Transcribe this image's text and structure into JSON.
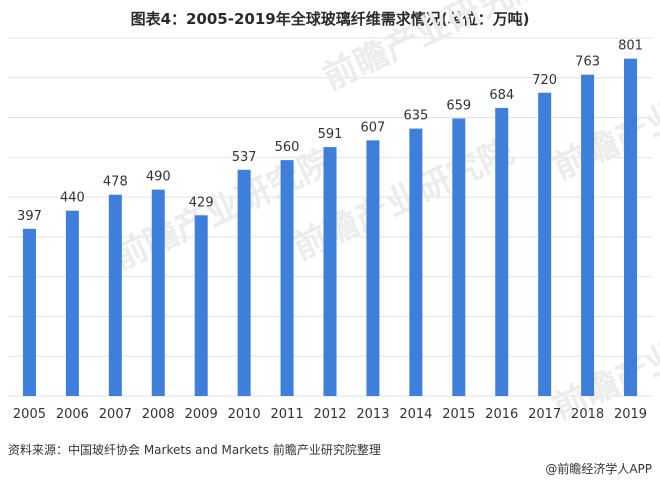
{
  "title": "图表4：2005-2019年全球玻璃纤维需求情况(单位：万吨)",
  "source": "资料来源：中国玻纤协会 Markets and Markets 前瞻产业研究院整理",
  "credit": "@前瞻经济学人APP",
  "watermark": "前瞻产业研究院",
  "colors": {
    "bar": "#3d7fdb",
    "grid": "#e3e3e3",
    "label": "#333333"
  },
  "chart_data": {
    "type": "bar",
    "title": "图表4：2005-2019年全球玻璃纤维需求情况(单位：万吨)",
    "categories": [
      "2005",
      "2006",
      "2007",
      "2008",
      "2009",
      "2010",
      "2011",
      "2012",
      "2013",
      "2014",
      "2015",
      "2016",
      "2017",
      "2018",
      "2019"
    ],
    "values": [
      397,
      440,
      478,
      490,
      429,
      537,
      560,
      591,
      607,
      635,
      659,
      684,
      720,
      763,
      801
    ],
    "ylim": [
      0,
      850
    ],
    "grid": true,
    "data_labels": true
  }
}
